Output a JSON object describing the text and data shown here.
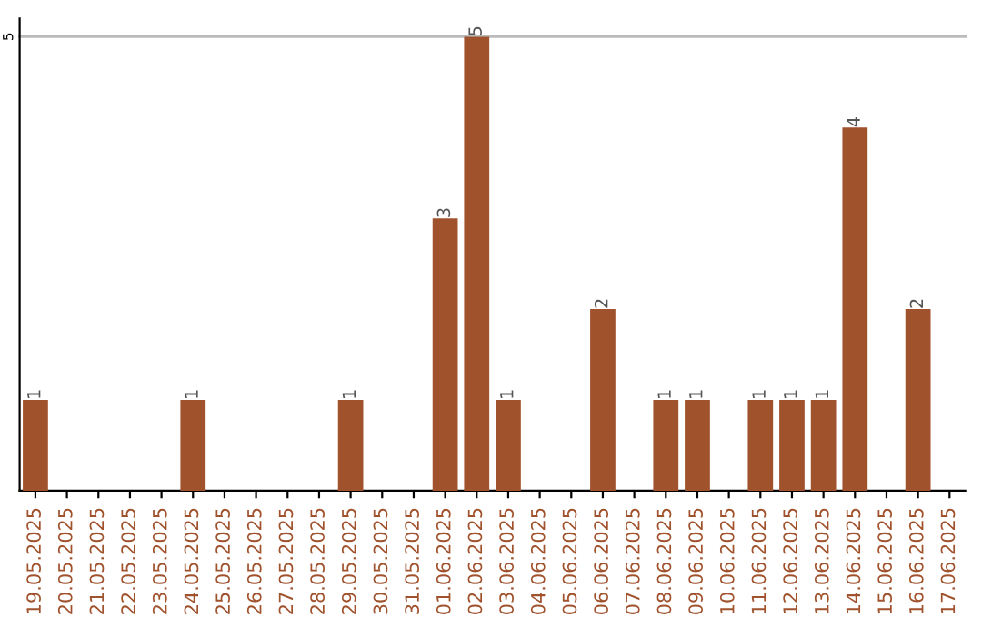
{
  "chart_data": {
    "type": "bar",
    "categories": [
      "19.05.2025",
      "20.05.2025",
      "21.05.2025",
      "22.05.2025",
      "23.05.2025",
      "24.05.2025",
      "25.05.2025",
      "26.05.2025",
      "27.05.2025",
      "28.05.2025",
      "29.05.2025",
      "30.05.2025",
      "31.05.2025",
      "01.06.2025",
      "02.06.2025",
      "03.06.2025",
      "04.06.2025",
      "05.06.2025",
      "06.06.2025",
      "07.06.2025",
      "08.06.2025",
      "09.06.2025",
      "10.06.2025",
      "11.06.2025",
      "12.06.2025",
      "13.06.2025",
      "14.06.2025",
      "15.06.2025",
      "16.06.2025",
      "17.06.2025"
    ],
    "values": [
      1,
      0,
      0,
      0,
      0,
      1,
      0,
      0,
      0,
      0,
      1,
      0,
      0,
      3,
      5,
      1,
      0,
      0,
      2,
      0,
      1,
      1,
      0,
      1,
      1,
      1,
      4,
      0,
      2,
      0
    ],
    "value_labels": [
      "1",
      null,
      null,
      null,
      null,
      "1",
      null,
      null,
      null,
      null,
      "1",
      null,
      null,
      "3",
      "5",
      "1",
      null,
      null,
      "2",
      null,
      "1",
      "1",
      null,
      "1",
      "1",
      "1",
      "4",
      null,
      "2",
      null
    ],
    "color": "#a0522d",
    "ylim": [
      0,
      5.2
    ],
    "yticks": [
      5
    ],
    "grid": "y"
  }
}
